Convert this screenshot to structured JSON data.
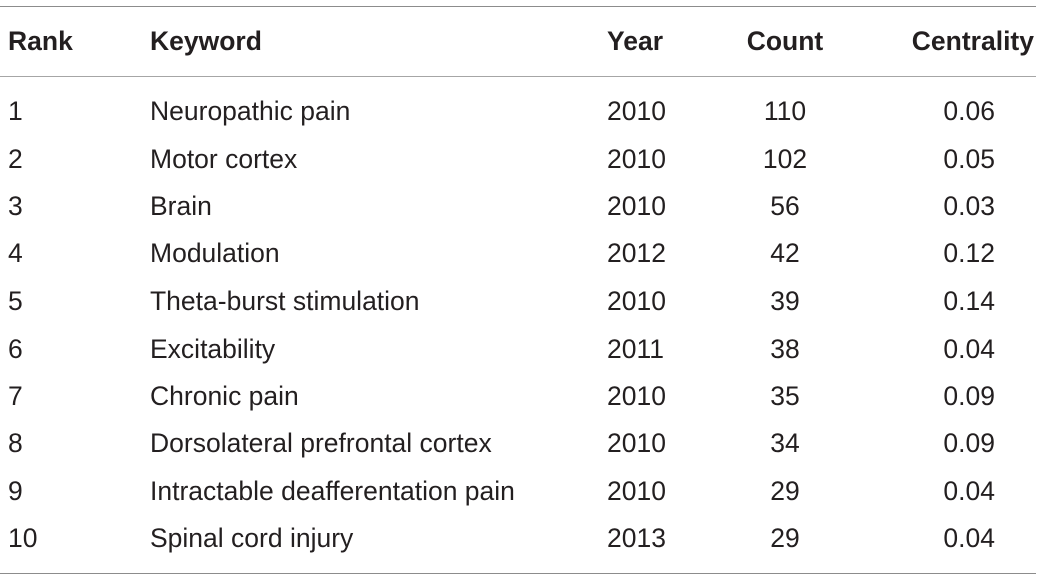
{
  "table": {
    "headers": {
      "rank": "Rank",
      "keyword": "Keyword",
      "year": "Year",
      "count": "Count",
      "centrality": "Centrality"
    },
    "rows": [
      {
        "rank": "1",
        "keyword": "Neuropathic pain",
        "year": "2010",
        "count": "110",
        "centrality": "0.06"
      },
      {
        "rank": "2",
        "keyword": "Motor cortex",
        "year": "2010",
        "count": "102",
        "centrality": "0.05"
      },
      {
        "rank": "3",
        "keyword": "Brain",
        "year": "2010",
        "count": "56",
        "centrality": "0.03"
      },
      {
        "rank": "4",
        "keyword": "Modulation",
        "year": "2012",
        "count": "42",
        "centrality": "0.12"
      },
      {
        "rank": "5",
        "keyword": "Theta-burst stimulation",
        "year": "2010",
        "count": "39",
        "centrality": "0.14"
      },
      {
        "rank": "6",
        "keyword": "Excitability",
        "year": "2011",
        "count": "38",
        "centrality": "0.04"
      },
      {
        "rank": "7",
        "keyword": "Chronic pain",
        "year": "2010",
        "count": "35",
        "centrality": "0.09"
      },
      {
        "rank": "8",
        "keyword": "Dorsolateral prefrontal cortex",
        "year": "2010",
        "count": "34",
        "centrality": "0.09"
      },
      {
        "rank": "9",
        "keyword": "Intractable deafferentation pain",
        "year": "2010",
        "count": "29",
        "centrality": "0.04"
      },
      {
        "rank": "10",
        "keyword": "Spinal cord injury",
        "year": "2013",
        "count": "29",
        "centrality": "0.04"
      }
    ]
  }
}
